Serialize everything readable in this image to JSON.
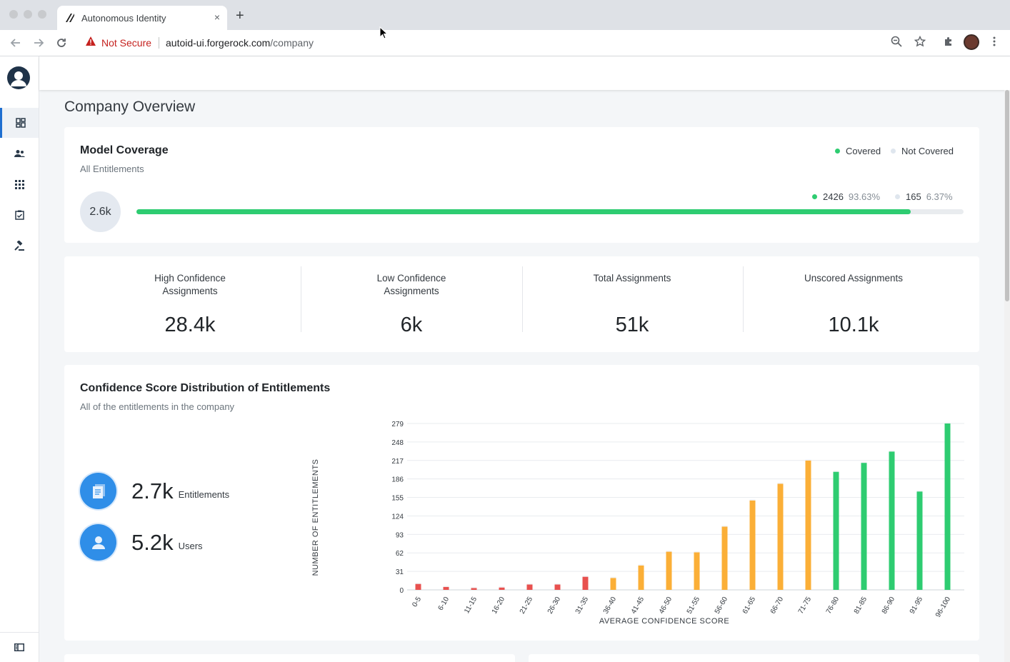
{
  "browser": {
    "tab_title": "Autonomous Identity",
    "tab_close": "×",
    "new_tab": "+",
    "security_label": "Not Secure",
    "url_host": "autoid-ui.forgerock.com",
    "url_path": "/company"
  },
  "sidebar": {
    "items": [
      {
        "icon": "dashboard-icon",
        "active": true
      },
      {
        "icon": "users-icon",
        "active": false
      },
      {
        "icon": "apps-grid-icon",
        "active": false
      },
      {
        "icon": "rules-icon",
        "active": false
      },
      {
        "icon": "gavel-icon",
        "active": false
      }
    ],
    "toggle_icon": "panel-toggle-icon"
  },
  "page": {
    "title": "Company Overview"
  },
  "model_coverage": {
    "title": "Model Coverage",
    "subtitle": "All Entitlements",
    "legend_covered": "Covered",
    "legend_not_covered": "Not Covered",
    "total": "2.6k",
    "covered_count": "2426",
    "covered_pct": "93.63%",
    "not_covered_count": "165",
    "not_covered_pct": "6.37%",
    "covered_fraction": 0.9363,
    "colors": {
      "covered": "#2ecc71",
      "not_covered": "#e9ecef"
    }
  },
  "metrics": [
    {
      "label": "High Confidence Assignments",
      "value": "28.4k"
    },
    {
      "label": "Low Confidence Assignments",
      "value": "6k"
    },
    {
      "label": "Total Assignments",
      "value": "51k"
    },
    {
      "label": "Unscored Assignments",
      "value": "10.1k"
    }
  ],
  "distribution": {
    "title": "Confidence Score Distribution of Entitlements",
    "subtitle": "All of the entitlements in the company",
    "entitlements_value": "2.7k",
    "entitlements_label": "Entitlements",
    "users_value": "5.2k",
    "users_label": "Users"
  },
  "chart_data": {
    "type": "bar",
    "xlabel": "AVERAGE CONFIDENCE SCORE",
    "ylabel": "NUMBER OF ENTITLEMENTS",
    "ylim": [
      0,
      279
    ],
    "yticks": [
      "0",
      "31",
      "62",
      "93",
      "124",
      "155",
      "186",
      "217",
      "248",
      "279"
    ],
    "categories": [
      "0-5",
      "6-10",
      "11-15",
      "16-20",
      "21-25",
      "26-30",
      "31-35",
      "36-40",
      "41-45",
      "46-50",
      "51-55",
      "56-60",
      "61-65",
      "66-70",
      "71-75",
      "76-80",
      "81-85",
      "86-90",
      "91-95",
      "96-100"
    ],
    "values": [
      10,
      5,
      3,
      4,
      9,
      9,
      22,
      20,
      41,
      64,
      63,
      106,
      150,
      178,
      217,
      198,
      213,
      232,
      165,
      279
    ],
    "bar_colors": [
      "#e8514f",
      "#e8514f",
      "#e8514f",
      "#e8514f",
      "#e8514f",
      "#e8514f",
      "#e8514f",
      "#fbaf37",
      "#fbaf37",
      "#fbaf37",
      "#fbaf37",
      "#fbaf37",
      "#fbaf37",
      "#fbaf37",
      "#fbaf37",
      "#2ecc71",
      "#2ecc71",
      "#2ecc71",
      "#2ecc71",
      "#2ecc71"
    ],
    "grid": true
  }
}
